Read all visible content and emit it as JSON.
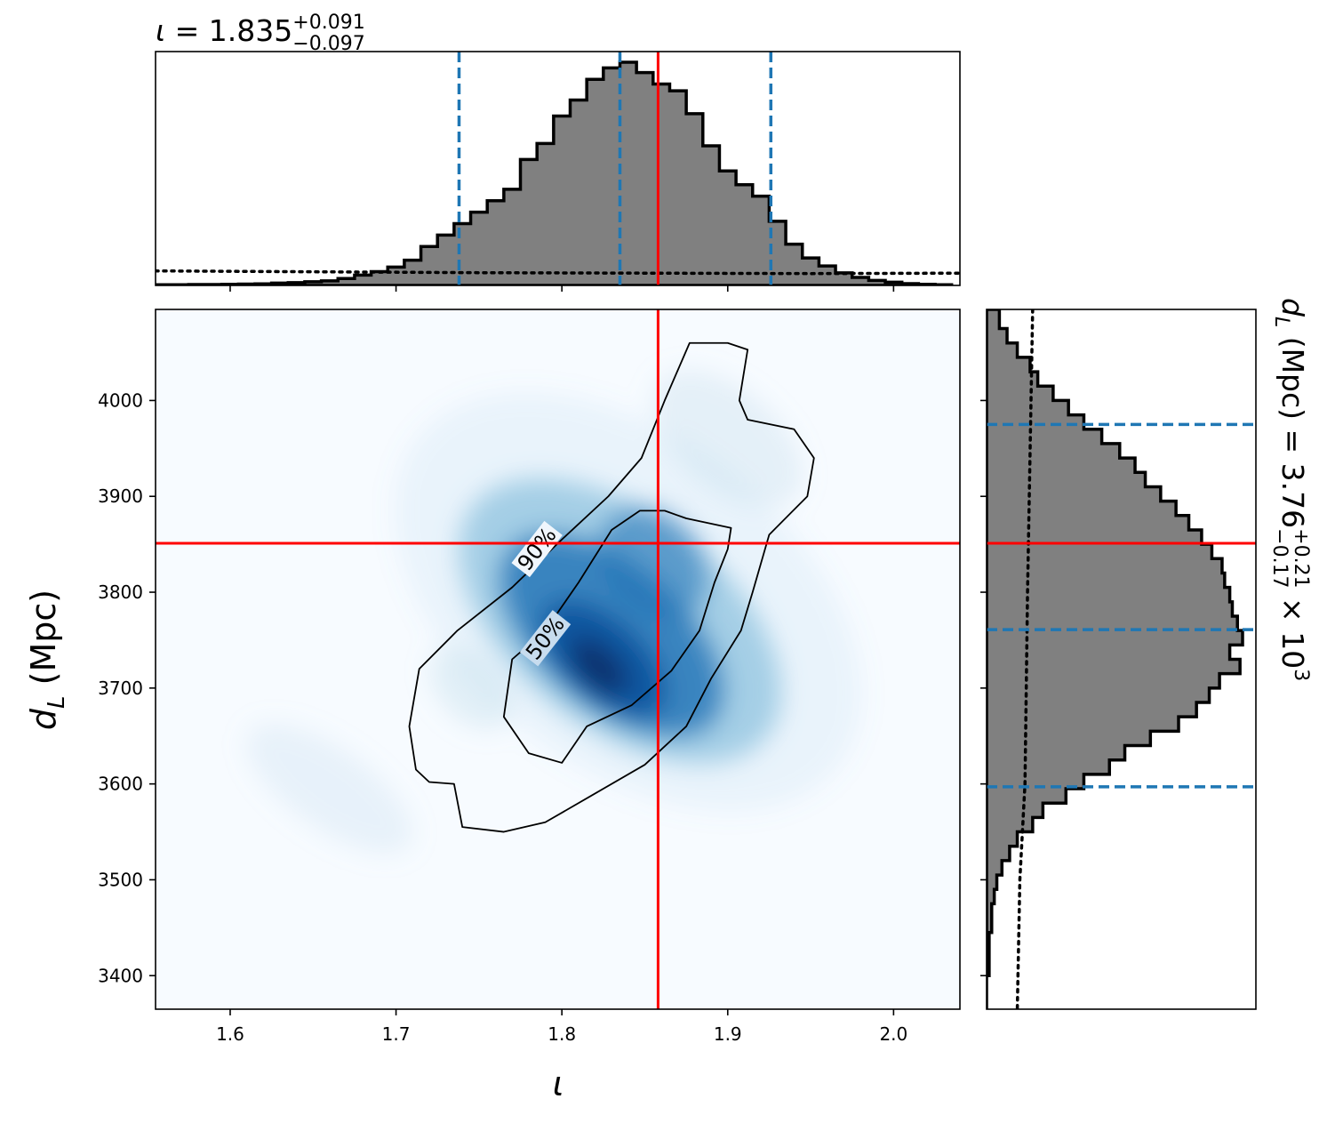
{
  "chart_data": [
    {
      "type": "heatmap",
      "panel": "joint",
      "xlabel": "ι",
      "ylabel_main": "d",
      "ylabel_sub": "L",
      "ylabel_unit": " (Mpc)",
      "xlim": [
        1.555,
        2.04
      ],
      "ylim": [
        3365,
        4095
      ],
      "xticks": [
        1.6,
        1.7,
        1.8,
        1.9,
        2.0
      ],
      "xtick_labels": [
        "1.6",
        "1.7",
        "1.8",
        "1.9",
        "2.0"
      ],
      "yticks": [
        3400,
        3500,
        3600,
        3700,
        3800,
        3900,
        4000
      ],
      "ytick_labels": [
        "3400",
        "3500",
        "3600",
        "3700",
        "3800",
        "3900",
        "4000"
      ],
      "colormap": "Blues",
      "density_peak": {
        "x": 1.825,
        "y": 3725
      },
      "injection": {
        "x": 1.858,
        "y": 3851,
        "color": "#ff0000"
      },
      "contours": [
        {
          "label": "50%",
          "points": [
            [
              1.847,
              3885
            ],
            [
              1.862,
              3885
            ],
            [
              1.875,
              3877
            ],
            [
              1.902,
              3867
            ],
            [
              1.9,
              3845
            ],
            [
              1.892,
              3810
            ],
            [
              1.883,
              3760
            ],
            [
              1.866,
              3718
            ],
            [
              1.842,
              3682
            ],
            [
              1.815,
              3660
            ],
            [
              1.8,
              3622
            ],
            [
              1.78,
              3632
            ],
            [
              1.765,
              3670
            ],
            [
              1.77,
              3730
            ],
            [
              1.79,
              3760
            ],
            [
              1.81,
              3810
            ],
            [
              1.83,
              3865
            ],
            [
              1.847,
              3885
            ]
          ]
        },
        {
          "label": "90%",
          "points": [
            [
              1.877,
              4060
            ],
            [
              1.9,
              4060
            ],
            [
              1.912,
              4053
            ],
            [
              1.907,
              4000
            ],
            [
              1.912,
              3980
            ],
            [
              1.94,
              3970
            ],
            [
              1.952,
              3940
            ],
            [
              1.948,
              3900
            ],
            [
              1.925,
              3860
            ],
            [
              1.915,
              3800
            ],
            [
              1.908,
              3760
            ],
            [
              1.89,
              3710
            ],
            [
              1.875,
              3660
            ],
            [
              1.85,
              3620
            ],
            [
              1.82,
              3590
            ],
            [
              1.79,
              3560
            ],
            [
              1.765,
              3550
            ],
            [
              1.74,
              3555
            ],
            [
              1.735,
              3600
            ],
            [
              1.72,
              3602
            ],
            [
              1.712,
              3615
            ],
            [
              1.708,
              3660
            ],
            [
              1.714,
              3720
            ],
            [
              1.737,
              3760
            ],
            [
              1.77,
              3805
            ],
            [
              1.8,
              3855
            ],
            [
              1.828,
              3900
            ],
            [
              1.848,
              3940
            ],
            [
              1.862,
              4000
            ],
            [
              1.877,
              4060
            ]
          ]
        }
      ]
    },
    {
      "type": "bar",
      "panel": "top-marginal",
      "title_param": "ι",
      "title_value": " = 1.835",
      "title_plus": "+0.091",
      "title_minus": "−0.097",
      "bins_x": [
        1.555,
        1.565,
        1.575,
        1.585,
        1.595,
        1.605,
        1.615,
        1.625,
        1.635,
        1.645,
        1.655,
        1.665,
        1.675,
        1.685,
        1.695,
        1.705,
        1.715,
        1.725,
        1.735,
        1.745,
        1.755,
        1.765,
        1.775,
        1.785,
        1.795,
        1.805,
        1.815,
        1.825,
        1.835,
        1.845,
        1.855,
        1.865,
        1.875,
        1.885,
        1.895,
        1.905,
        1.915,
        1.925,
        1.935,
        1.945,
        1.955,
        1.965,
        1.975,
        1.985,
        1.995,
        2.005,
        2.015,
        2.025
      ],
      "values": [
        0.003,
        0.003,
        0.004,
        0.004,
        0.005,
        0.006,
        0.007,
        0.01,
        0.012,
        0.016,
        0.02,
        0.03,
        0.045,
        0.06,
        0.08,
        0.11,
        0.17,
        0.22,
        0.27,
        0.32,
        0.37,
        0.42,
        0.55,
        0.62,
        0.74,
        0.81,
        0.9,
        0.95,
        0.975,
        0.93,
        0.88,
        0.85,
        0.75,
        0.61,
        0.5,
        0.44,
        0.39,
        0.28,
        0.18,
        0.12,
        0.085,
        0.055,
        0.035,
        0.022,
        0.014,
        0.008,
        0.005,
        0.003
      ],
      "prior_line": {
        "left": 0.065,
        "right": 0.055
      },
      "quantiles": [
        1.738,
        1.835,
        1.926
      ],
      "injection": 1.858
    },
    {
      "type": "bar",
      "panel": "right-marginal",
      "title_param": "d",
      "title_sub": "L",
      "title_value": " (Mpc) = 3.76",
      "title_plus": "+0.21",
      "title_minus": "−0.17",
      "title_scale": " × 10",
      "title_exp": "3",
      "bins_y": [
        4095,
        4075,
        4060,
        4045,
        4030,
        4015,
        4000,
        3985,
        3970,
        3955,
        3940,
        3925,
        3910,
        3895,
        3880,
        3865,
        3850,
        3835,
        3820,
        3805,
        3790,
        3775,
        3760,
        3745,
        3730,
        3715,
        3700,
        3685,
        3670,
        3655,
        3640,
        3625,
        3610,
        3595,
        3580,
        3565,
        3550,
        3535,
        3520,
        3505,
        3490,
        3475,
        3460,
        3445,
        3430,
        3415,
        3400,
        3385,
        3365
      ],
      "values": [
        0.05,
        0.08,
        0.12,
        0.17,
        0.2,
        0.26,
        0.32,
        0.38,
        0.45,
        0.52,
        0.58,
        0.62,
        0.68,
        0.74,
        0.79,
        0.84,
        0.88,
        0.92,
        0.93,
        0.95,
        0.96,
        0.98,
        1.0,
        0.95,
        0.99,
        0.91,
        0.87,
        0.82,
        0.75,
        0.64,
        0.54,
        0.48,
        0.38,
        0.31,
        0.22,
        0.18,
        0.12,
        0.09,
        0.06,
        0.04,
        0.03,
        0.02,
        0.02,
        0.01,
        0.01,
        0.01,
        0.0,
        0.0
      ],
      "prior_line": {
        "top": 0.18,
        "bottom": 0.12
      },
      "quantiles": [
        3975,
        3761,
        3597
      ],
      "injection": 3851
    }
  ]
}
